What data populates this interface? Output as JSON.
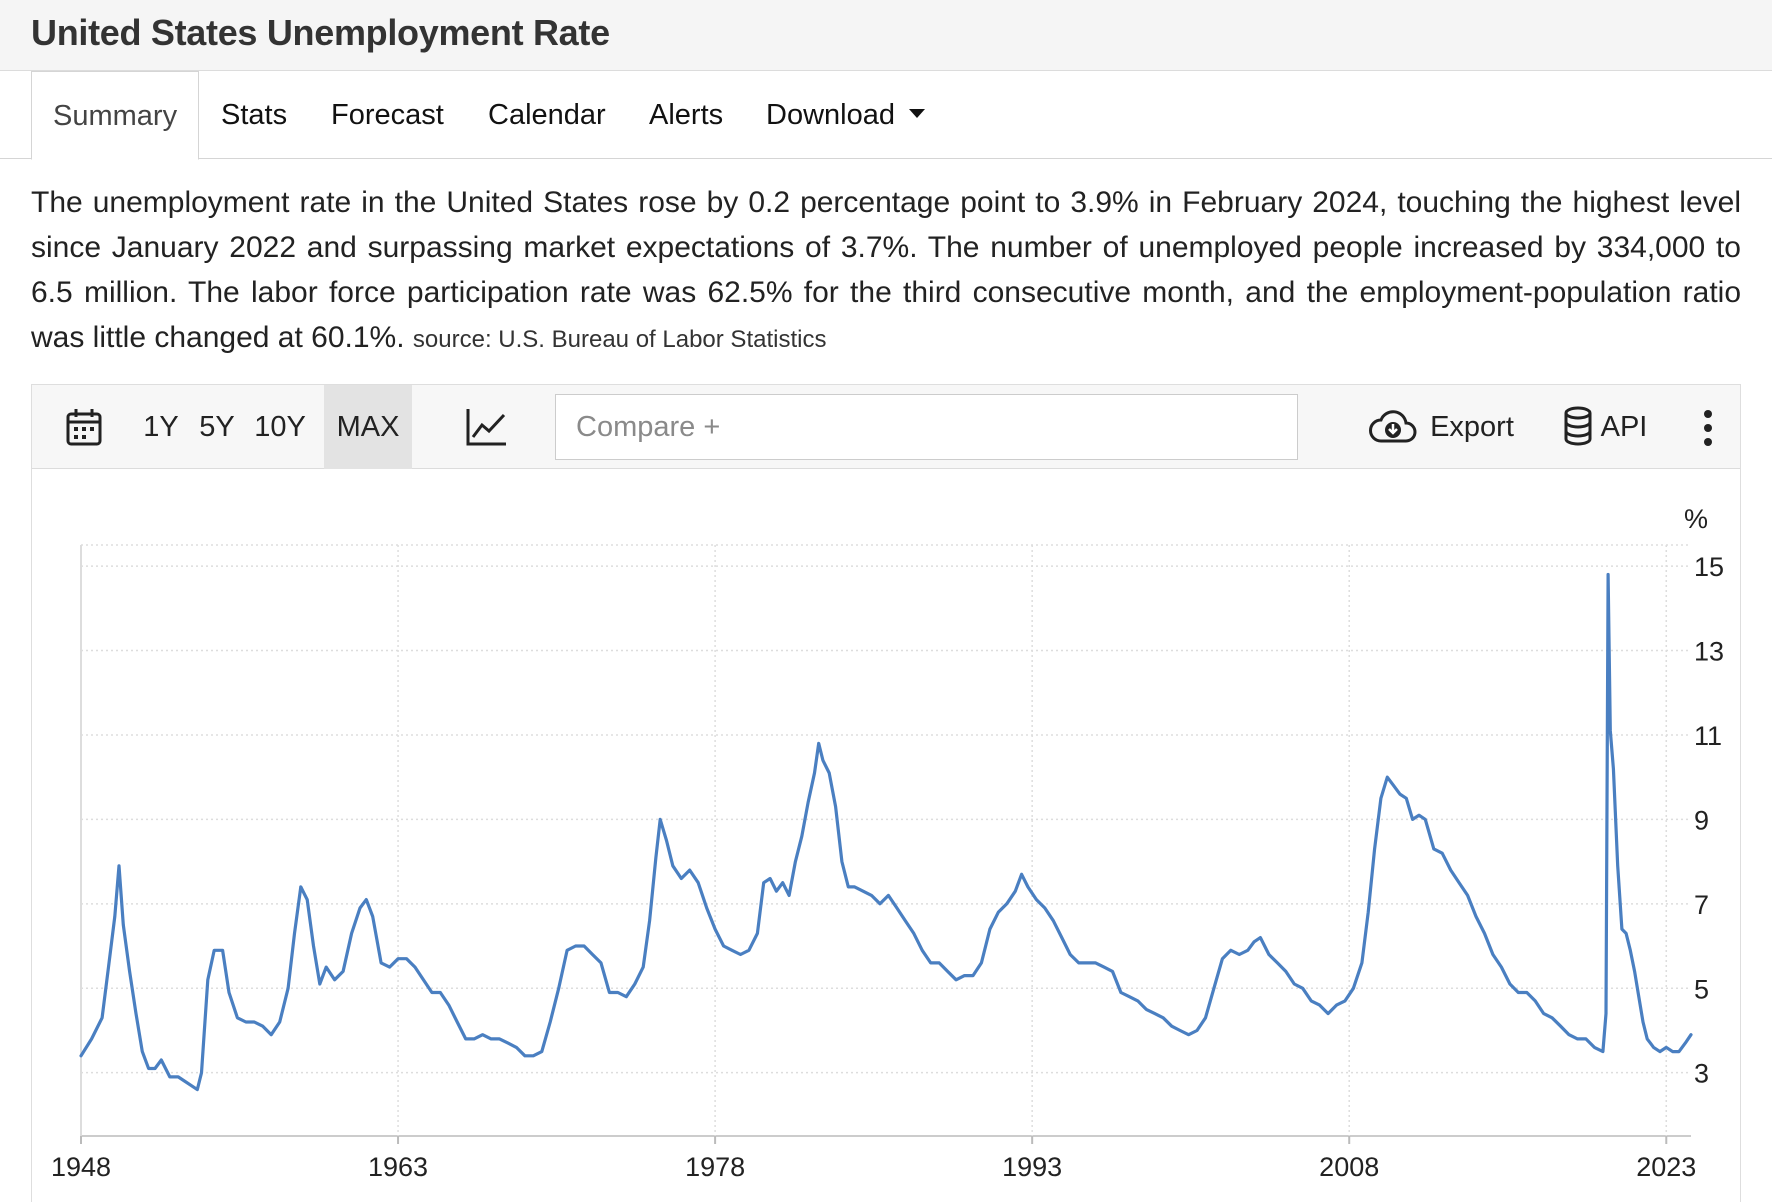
{
  "page": {
    "title": "United States Unemployment Rate"
  },
  "tabs": [
    {
      "label": "Summary",
      "active": true
    },
    {
      "label": "Stats"
    },
    {
      "label": "Forecast"
    },
    {
      "label": "Calendar"
    },
    {
      "label": "Alerts"
    },
    {
      "label": "Download",
      "has_dropdown": true
    }
  ],
  "summary": {
    "text": "The unemployment rate in the United States rose by 0.2 percentage point to 3.9% in February 2024, touching the highest level since January 2022 and surpassing market expectations of 3.7%. The number of unemployed people increased by 334,000 to 6.5 million. The labor force participation rate was 62.5% for the third consecutive month, and the employment-population ratio was little changed at 60.1%.",
    "source": "source: U.S. Bureau of Labor Statistics"
  },
  "toolbar": {
    "calendar_icon": "calendar-icon",
    "ranges": [
      "1Y",
      "5Y",
      "10Y",
      "MAX"
    ],
    "selected_range": "MAX",
    "chart_type_icon": "line-chart-icon",
    "compare_placeholder": "Compare +",
    "export_label": "Export",
    "export_icon": "cloud-download-icon",
    "api_label": "API",
    "api_icon": "database-icon",
    "more_icon": "more-vertical-icon"
  },
  "colors": {
    "line": "#4a7fc1",
    "grid": "#dddddd",
    "selected_range_bg": "#e3e3e3"
  },
  "chart_data": {
    "type": "line",
    "title": "",
    "xlabel": "",
    "ylabel": "%",
    "y_ticks": [
      3,
      5,
      7,
      9,
      11,
      13,
      15
    ],
    "x_ticks": [
      1948,
      1963,
      1978,
      1993,
      2008,
      2023
    ],
    "ylim": [
      1.5,
      15.5
    ],
    "xlim": [
      1948.0,
      2024.17
    ],
    "grid": true,
    "series": [
      {
        "x": [
          1948.0,
          1948.5,
          1949.0,
          1949.3,
          1949.6,
          1949.8,
          1950.0,
          1950.3,
          1950.6,
          1950.9,
          1951.2,
          1951.5,
          1951.8,
          1952.2,
          1952.6,
          1952.9,
          1953.2,
          1953.5,
          1953.7,
          1954.0,
          1954.3,
          1954.7,
          1955.0,
          1955.4,
          1955.8,
          1956.2,
          1956.6,
          1957.0,
          1957.4,
          1957.8,
          1958.1,
          1958.4,
          1958.7,
          1959.0,
          1959.3,
          1959.6,
          1960.0,
          1960.4,
          1960.8,
          1961.2,
          1961.5,
          1961.8,
          1962.2,
          1962.6,
          1963.0,
          1963.4,
          1963.8,
          1964.2,
          1964.6,
          1965.0,
          1965.4,
          1965.8,
          1966.2,
          1966.6,
          1967.0,
          1967.4,
          1967.8,
          1968.2,
          1968.6,
          1969.0,
          1969.4,
          1969.8,
          1970.2,
          1970.6,
          1971.0,
          1971.4,
          1971.8,
          1972.2,
          1972.6,
          1973.0,
          1973.4,
          1973.8,
          1974.2,
          1974.6,
          1974.9,
          1975.2,
          1975.4,
          1975.7,
          1976.0,
          1976.4,
          1976.8,
          1977.2,
          1977.6,
          1978.0,
          1978.4,
          1978.8,
          1979.2,
          1979.6,
          1980.0,
          1980.3,
          1980.6,
          1980.9,
          1981.2,
          1981.5,
          1981.8,
          1982.1,
          1982.4,
          1982.7,
          1982.9,
          1983.1,
          1983.4,
          1983.7,
          1984.0,
          1984.3,
          1984.6,
          1985.0,
          1985.4,
          1985.8,
          1986.2,
          1986.6,
          1987.0,
          1987.4,
          1987.8,
          1988.2,
          1988.6,
          1989.0,
          1989.4,
          1989.8,
          1990.2,
          1990.6,
          1991.0,
          1991.4,
          1991.8,
          1992.2,
          1992.5,
          1992.8,
          1993.2,
          1993.6,
          1994.0,
          1994.4,
          1994.8,
          1995.2,
          1995.6,
          1996.0,
          1996.4,
          1996.8,
          1997.2,
          1997.6,
          1998.0,
          1998.4,
          1998.8,
          1999.2,
          1999.6,
          2000.0,
          2000.4,
          2000.8,
          2001.2,
          2001.6,
          2002.0,
          2002.4,
          2002.8,
          2003.2,
          2003.5,
          2003.8,
          2004.2,
          2004.6,
          2005.0,
          2005.4,
          2005.8,
          2006.2,
          2006.6,
          2007.0,
          2007.4,
          2007.8,
          2008.2,
          2008.6,
          2008.9,
          2009.2,
          2009.5,
          2009.8,
          2010.1,
          2010.4,
          2010.7,
          2011.0,
          2011.3,
          2011.6,
          2012.0,
          2012.4,
          2012.8,
          2013.2,
          2013.6,
          2014.0,
          2014.4,
          2014.8,
          2015.2,
          2015.6,
          2016.0,
          2016.4,
          2016.8,
          2017.2,
          2017.6,
          2018.0,
          2018.4,
          2018.8,
          2019.2,
          2019.6,
          2020.0,
          2020.15,
          2020.25,
          2020.35,
          2020.5,
          2020.7,
          2020.9,
          2021.1,
          2021.3,
          2021.5,
          2021.7,
          2021.9,
          2022.1,
          2022.4,
          2022.7,
          2023.0,
          2023.3,
          2023.6,
          2023.9,
          2024.17
        ],
        "values": [
          3.4,
          3.8,
          4.3,
          5.5,
          6.7,
          7.9,
          6.5,
          5.4,
          4.4,
          3.5,
          3.1,
          3.1,
          3.3,
          2.9,
          2.9,
          2.8,
          2.7,
          2.6,
          3.0,
          5.2,
          5.9,
          5.9,
          4.9,
          4.3,
          4.2,
          4.2,
          4.1,
          3.9,
          4.2,
          5.0,
          6.3,
          7.4,
          7.1,
          6.0,
          5.1,
          5.5,
          5.2,
          5.4,
          6.3,
          6.9,
          7.1,
          6.7,
          5.6,
          5.5,
          5.7,
          5.7,
          5.5,
          5.2,
          4.9,
          4.9,
          4.6,
          4.2,
          3.8,
          3.8,
          3.9,
          3.8,
          3.8,
          3.7,
          3.6,
          3.4,
          3.4,
          3.5,
          4.2,
          5.0,
          5.9,
          6.0,
          6.0,
          5.8,
          5.6,
          4.9,
          4.9,
          4.8,
          5.1,
          5.5,
          6.6,
          8.1,
          9.0,
          8.5,
          7.9,
          7.6,
          7.8,
          7.5,
          6.9,
          6.4,
          6.0,
          5.9,
          5.8,
          5.9,
          6.3,
          7.5,
          7.6,
          7.3,
          7.5,
          7.2,
          8.0,
          8.6,
          9.4,
          10.1,
          10.8,
          10.4,
          10.1,
          9.3,
          8.0,
          7.4,
          7.4,
          7.3,
          7.2,
          7.0,
          7.2,
          6.9,
          6.6,
          6.3,
          5.9,
          5.6,
          5.6,
          5.4,
          5.2,
          5.3,
          5.3,
          5.6,
          6.4,
          6.8,
          7.0,
          7.3,
          7.7,
          7.4,
          7.1,
          6.9,
          6.6,
          6.2,
          5.8,
          5.6,
          5.6,
          5.6,
          5.5,
          5.4,
          4.9,
          4.8,
          4.7,
          4.5,
          4.4,
          4.3,
          4.1,
          4.0,
          3.9,
          4.0,
          4.3,
          5.0,
          5.7,
          5.9,
          5.8,
          5.9,
          6.1,
          6.2,
          5.8,
          5.6,
          5.4,
          5.1,
          5.0,
          4.7,
          4.6,
          4.4,
          4.6,
          4.7,
          5.0,
          5.6,
          6.8,
          8.3,
          9.5,
          10.0,
          9.8,
          9.6,
          9.5,
          9.0,
          9.1,
          9.0,
          8.3,
          8.2,
          7.8,
          7.5,
          7.2,
          6.7,
          6.3,
          5.8,
          5.5,
          5.1,
          4.9,
          4.9,
          4.7,
          4.4,
          4.3,
          4.1,
          3.9,
          3.8,
          3.8,
          3.6,
          3.5,
          4.4,
          14.8,
          11.1,
          10.2,
          7.9,
          6.4,
          6.3,
          5.9,
          5.4,
          4.8,
          4.2,
          3.8,
          3.6,
          3.5,
          3.6,
          3.5,
          3.5,
          3.7,
          3.9
        ],
        "line_color": "#4a7fc1"
      }
    ]
  }
}
